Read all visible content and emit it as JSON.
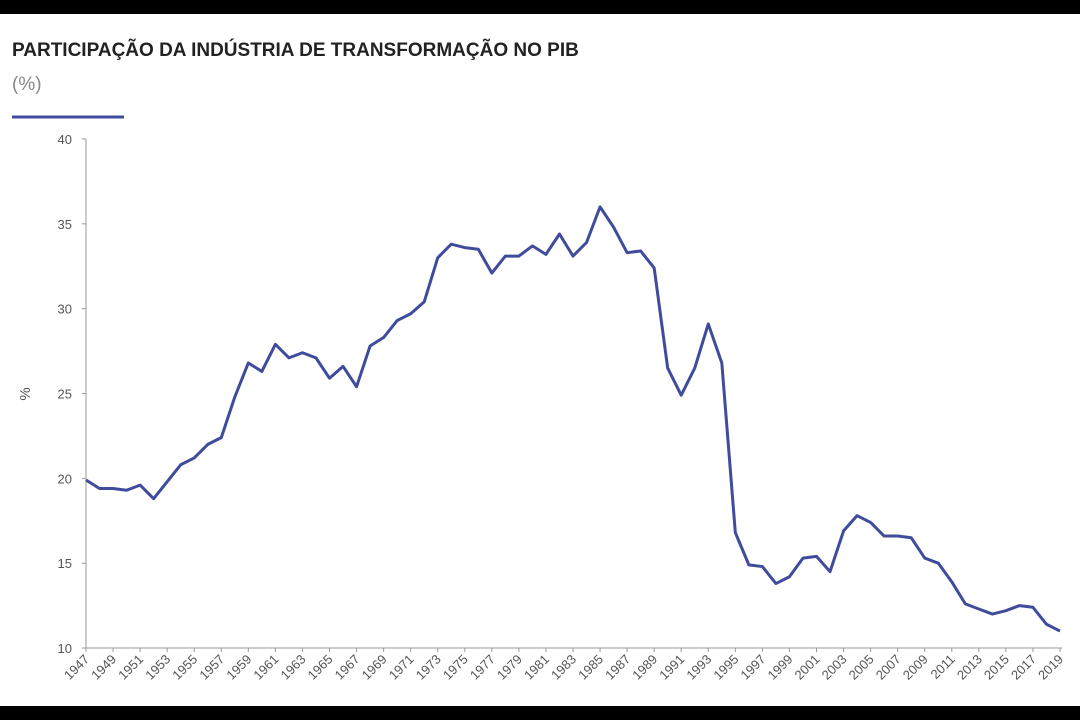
{
  "chart_data": {
    "type": "line",
    "title": "PARTICIPAÇÃO DA INDÚSTRIA DE TRANSFORMAÇÃO NO PIB",
    "subtitle": "(%)",
    "y_label": "%",
    "x": [
      1947,
      1948,
      1949,
      1950,
      1951,
      1952,
      1953,
      1954,
      1955,
      1956,
      1957,
      1958,
      1959,
      1960,
      1961,
      1962,
      1963,
      1964,
      1965,
      1966,
      1967,
      1968,
      1969,
      1970,
      1971,
      1972,
      1973,
      1974,
      1975,
      1976,
      1977,
      1978,
      1979,
      1980,
      1981,
      1982,
      1983,
      1984,
      1985,
      1986,
      1987,
      1988,
      1989,
      1990,
      1991,
      1992,
      1993,
      1994,
      1995,
      1996,
      1997,
      1998,
      1999,
      2000,
      2001,
      2002,
      2003,
      2004,
      2005,
      2006,
      2007,
      2008,
      2009,
      2010,
      2011,
      2012,
      2013,
      2014,
      2015,
      2016,
      2017,
      2018,
      2019
    ],
    "series": [
      {
        "color": "#3f4c9c",
        "values": [
          19.9,
          19.4,
          19.4,
          19.3,
          19.6,
          18.8,
          19.8,
          20.8,
          21.2,
          22.0,
          22.4,
          24.8,
          26.8,
          26.3,
          27.9,
          27.1,
          27.4,
          27.1,
          25.9,
          26.6,
          25.4,
          27.8,
          28.3,
          29.3,
          29.7,
          30.4,
          33.0,
          33.8,
          33.6,
          33.5,
          32.1,
          33.1,
          33.1,
          33.7,
          33.2,
          34.4,
          33.1,
          33.9,
          36.0,
          34.8,
          33.3,
          33.4,
          32.4,
          26.5,
          24.9,
          26.5,
          29.1,
          26.8,
          16.8,
          14.9,
          14.8,
          13.8,
          14.2,
          15.3,
          15.4,
          14.5,
          16.9,
          17.8,
          17.4,
          16.6,
          16.6,
          16.5,
          15.3,
          15.0,
          13.9,
          12.6,
          12.3,
          12.0,
          12.2,
          12.5,
          12.4,
          11.4,
          11.0
        ]
      }
    ],
    "xlim": [
      1947,
      2019
    ],
    "xticks": [
      1947,
      1949,
      1951,
      1953,
      1955,
      1957,
      1959,
      1961,
      1963,
      1965,
      1967,
      1969,
      1971,
      1973,
      1975,
      1977,
      1979,
      1981,
      1983,
      1985,
      1987,
      1989,
      1991,
      1993,
      1995,
      1997,
      1999,
      2001,
      2003,
      2005,
      2007,
      2009,
      2011,
      2013,
      2015,
      2017,
      2019
    ],
    "ylim": [
      10,
      40
    ],
    "yticks": [
      10,
      15,
      20,
      25,
      30,
      35,
      40
    ],
    "grid": false
  }
}
